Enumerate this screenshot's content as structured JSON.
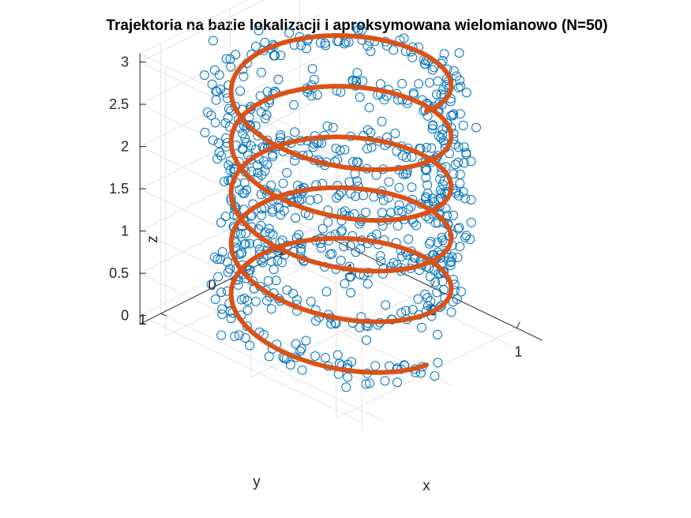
{
  "chart_data": {
    "type": "scatter",
    "projection": "3d",
    "title": "Trajektoria na bazie lokalizacji i aproksymowana wielomianowo (N=50)",
    "xlabel": "x",
    "ylabel": "y",
    "zlabel": "z",
    "xlim": [
      -1.3,
      1.3
    ],
    "ylim": [
      -1.3,
      1.3
    ],
    "zlim": [
      -0.1,
      3.1
    ],
    "xticks": [
      "-1",
      "0",
      "1"
    ],
    "yticks": [
      "-1",
      "0",
      "1"
    ],
    "zticks": [
      "0",
      "0.5",
      "1",
      "1.5",
      "2",
      "2.5",
      "3"
    ],
    "grid": true,
    "colors": {
      "localization": "#0072BD",
      "approximation": "#D95319"
    },
    "series": [
      {
        "kind": "markers",
        "marker": "circle",
        "trajectory": "helix",
        "radius": 1.0,
        "turns": 5,
        "z_range": [
          0.0,
          3.0
        ],
        "noise_std": 0.12,
        "num_points": 800
      },
      {
        "kind": "line",
        "trajectory": "helix",
        "radius": 1.0,
        "turns": 5,
        "z_range": [
          0.0,
          3.0
        ],
        "line_width": 6
      }
    ]
  }
}
